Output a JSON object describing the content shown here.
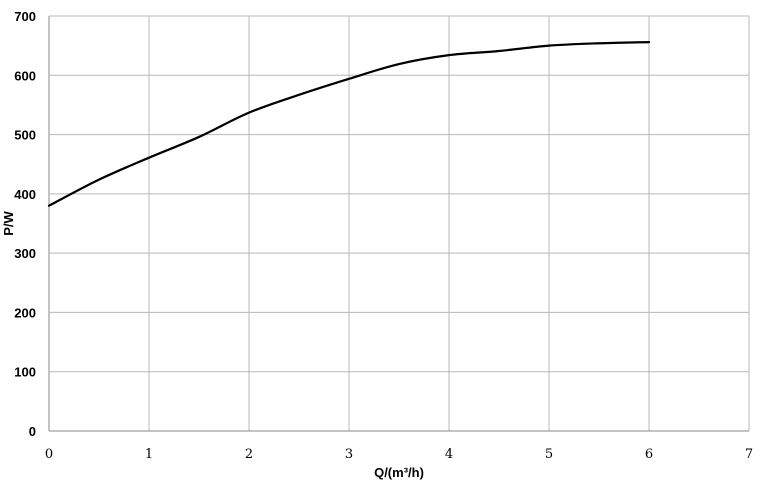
{
  "chart_data": {
    "type": "line",
    "title": "",
    "xlabel": "Q/(m³/h)",
    "ylabel": "P/W",
    "xlim": [
      0,
      7
    ],
    "ylim": [
      0,
      700
    ],
    "x_ticks": [
      0,
      1,
      2,
      3,
      4,
      5,
      6,
      7
    ],
    "y_ticks": [
      0,
      100,
      200,
      300,
      400,
      500,
      600,
      700
    ],
    "grid": true,
    "legend": "none",
    "line_color": "#000000",
    "grid_color": "#b8b8b8",
    "series": [
      {
        "x": [
          0,
          0.5,
          1,
          1.5,
          2,
          2.5,
          3,
          3.5,
          4,
          4.5,
          5,
          5.5,
          6
        ],
        "y": [
          380,
          424,
          461,
          496,
          537,
          567,
          594,
          619,
          634,
          641,
          650,
          654,
          656
        ]
      }
    ]
  }
}
